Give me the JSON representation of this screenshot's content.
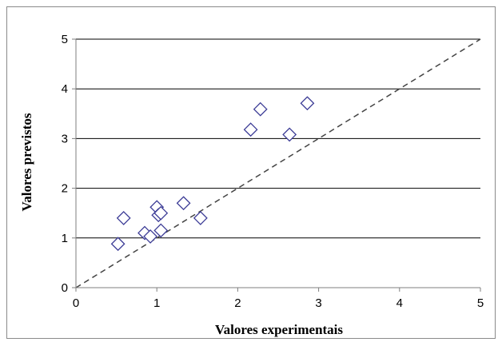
{
  "chart_data": {
    "type": "scatter",
    "title": "",
    "xlabel": "Valores experimentais",
    "ylabel": "Valores previstos",
    "xlim": [
      0,
      5
    ],
    "ylim": [
      0,
      5
    ],
    "xticks": [
      "0",
      "1",
      "2",
      "3",
      "4",
      "5"
    ],
    "yticks": [
      "0",
      "1",
      "2",
      "3",
      "4",
      "5"
    ],
    "grid": "horizontal",
    "marker": "open diamond",
    "marker_color": "#3c3c96",
    "reference_line": {
      "style": "dashed",
      "from": [
        0,
        0
      ],
      "to": [
        5,
        5
      ]
    },
    "series": [
      {
        "points": [
          {
            "x": 0.52,
            "y": 0.88
          },
          {
            "x": 0.59,
            "y": 1.4
          },
          {
            "x": 0.85,
            "y": 1.1
          },
          {
            "x": 0.92,
            "y": 1.03
          },
          {
            "x": 1.0,
            "y": 1.62
          },
          {
            "x": 1.02,
            "y": 1.46
          },
          {
            "x": 1.05,
            "y": 1.5
          },
          {
            "x": 1.05,
            "y": 1.15
          },
          {
            "x": 1.33,
            "y": 1.7
          },
          {
            "x": 1.54,
            "y": 1.4
          },
          {
            "x": 2.16,
            "y": 3.18
          },
          {
            "x": 2.28,
            "y": 3.59
          },
          {
            "x": 2.64,
            "y": 3.08
          },
          {
            "x": 2.86,
            "y": 3.71
          }
        ]
      }
    ]
  }
}
